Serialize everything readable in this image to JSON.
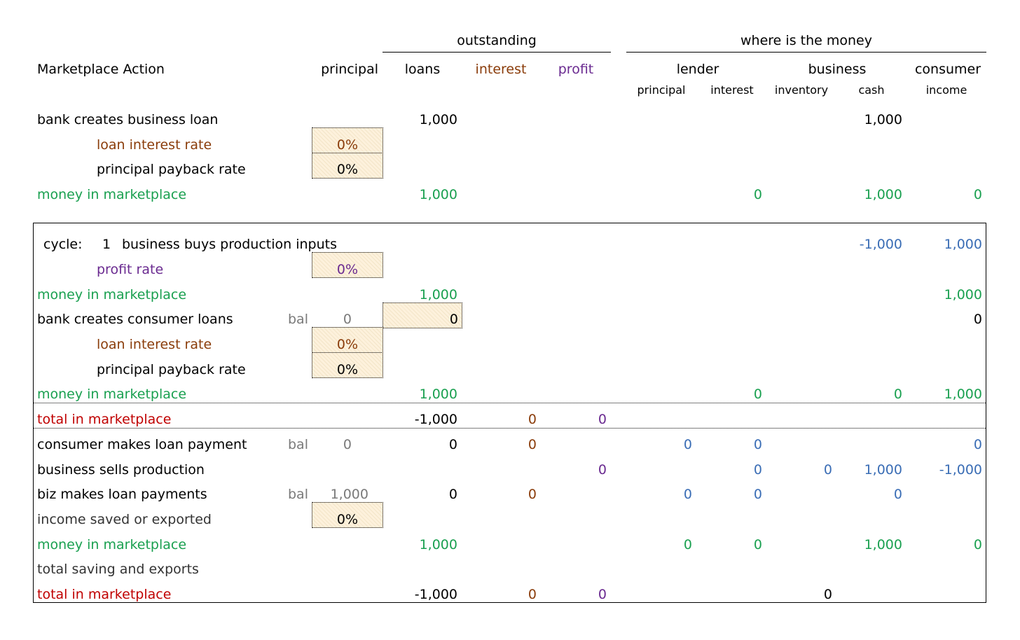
{
  "colors": {
    "black": "#000000",
    "green": "#1aa050",
    "interest": "#8a3c0a",
    "profit": "#6a2a90",
    "blue": "#3a6db5",
    "red": "#c00000",
    "gray": "#7a7a7a",
    "input_fill": "#fdf1dc"
  },
  "headers": {
    "outstanding": "outstanding",
    "where": "where is the money",
    "action": "Marketplace Action",
    "principal": "principal",
    "loans": "loans",
    "interest": "interest",
    "profit": "profit",
    "lender": "lender",
    "business": "business",
    "consumer": "consumer",
    "sub_principal": "principal",
    "sub_interest": "interest",
    "sub_inventory": "inventory",
    "sub_cash": "cash",
    "sub_income": "income"
  },
  "top": {
    "bank_business_loan": {
      "label": "bank creates business loan",
      "loans": "1,000",
      "cash": "1,000"
    },
    "loan_interest_rate": {
      "label": "loan interest rate",
      "value": "0%"
    },
    "principal_payback_rate": {
      "label": "principal payback rate",
      "value": "0%"
    },
    "money": {
      "label": "money in marketplace",
      "loans": "1,000",
      "lender_interest": "0",
      "cash": "1,000",
      "income": "0"
    }
  },
  "cycle": {
    "label": "cycle:",
    "number": "1",
    "buys": {
      "label": "business buys production inputs",
      "cash": "-1,000",
      "income": "1,000"
    },
    "profit_rate": {
      "label": "profit rate",
      "value": "0%"
    },
    "money1": {
      "label": "money in marketplace",
      "loans": "1,000",
      "income": "1,000"
    },
    "consumer_loans": {
      "label": "bank creates consumer loans",
      "bal_label": "bal",
      "bal": "0",
      "input": "0",
      "income": "0"
    },
    "loan_interest_rate": {
      "label": "loan interest rate",
      "value": "0%"
    },
    "principal_payback_rate": {
      "label": "principal payback rate",
      "value": "0%"
    },
    "money2": {
      "label": "money in marketplace",
      "loans": "1,000",
      "lender_interest": "0",
      "cash": "0",
      "income": "1,000"
    },
    "total1": {
      "label": "total in marketplace",
      "loans": "-1,000",
      "interest": "0",
      "profit": "0"
    },
    "consumer_payment": {
      "label": "consumer makes loan payment",
      "bal_label": "bal",
      "bal": "0",
      "loans": "0",
      "interest": "0",
      "lender_principal": "0",
      "lender_interest": "0",
      "income": "0"
    },
    "sells": {
      "label": "business sells production",
      "profit": "0",
      "lender_interest": "0",
      "inventory": "0",
      "cash": "1,000",
      "income": "-1,000"
    },
    "biz_payments": {
      "label": "biz makes loan payments",
      "bal_label": "bal",
      "bal": "1,000",
      "loans": "0",
      "interest": "0",
      "lender_principal": "0",
      "lender_interest": "0",
      "cash": "0"
    },
    "income_saved": {
      "label": "income saved or exported",
      "value": "0%"
    },
    "money3": {
      "label": "money in marketplace",
      "loans": "1,000",
      "lender_principal": "0",
      "lender_interest": "0",
      "cash": "1,000",
      "income": "0"
    },
    "saving_exports": {
      "label": "total saving and exports"
    },
    "total2": {
      "label": "total in marketplace",
      "loans": "-1,000",
      "interest": "0",
      "profit": "0",
      "inventory": "0"
    }
  }
}
